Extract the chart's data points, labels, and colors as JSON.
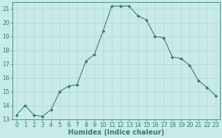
{
  "x": [
    0,
    1,
    2,
    3,
    4,
    5,
    6,
    7,
    8,
    9,
    10,
    11,
    12,
    13,
    14,
    15,
    16,
    17,
    18,
    19,
    20,
    21,
    22,
    23
  ],
  "y": [
    13.3,
    14.0,
    13.3,
    13.2,
    13.7,
    15.0,
    15.4,
    15.5,
    17.2,
    17.7,
    19.4,
    21.2,
    21.2,
    21.2,
    20.5,
    20.2,
    19.0,
    18.9,
    17.5,
    17.4,
    16.9,
    15.8,
    15.3,
    14.7
  ],
  "line_color": "#2e7d6e",
  "marker": "D",
  "marker_size": 2,
  "bg_color": "#c8eae8",
  "grid_color": "#b0d4d0",
  "xlabel": "Humidex (Indice chaleur)",
  "ylim": [
    13,
    21.5
  ],
  "xlim": [
    -0.5,
    23.5
  ],
  "yticks": [
    13,
    14,
    15,
    16,
    17,
    18,
    19,
    20,
    21
  ],
  "xticks": [
    0,
    1,
    2,
    3,
    4,
    5,
    6,
    7,
    8,
    9,
    10,
    11,
    12,
    13,
    14,
    15,
    16,
    17,
    18,
    19,
    20,
    21,
    22,
    23
  ],
  "xlabel_fontsize": 7,
  "tick_fontsize": 6,
  "linewidth": 0.8
}
